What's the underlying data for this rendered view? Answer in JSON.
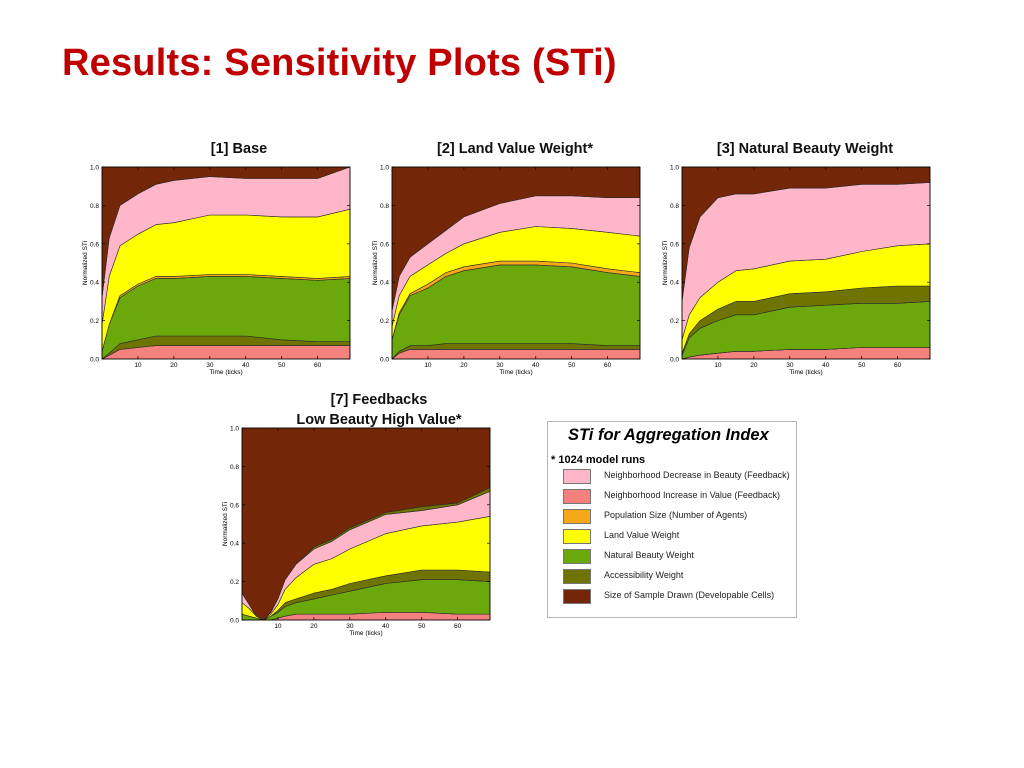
{
  "slide": {
    "title": "Results: Sensitivity Plots (STi)"
  },
  "legend": {
    "title": "STi for Aggregation Index",
    "note": "* 1024 model runs",
    "items": [
      {
        "label": "Neighborhood Decrease in Beauty (Feedback)",
        "color": "#ffb6c8"
      },
      {
        "label": "Neighborhood Increase in Value (Feedback)",
        "color": "#f4817e"
      },
      {
        "label": "Population Size (Number of Agents)",
        "color": "#f5a81a"
      },
      {
        "label": "Land Value Weight",
        "color": "#ffff00"
      },
      {
        "label": "Natural Beauty Weight",
        "color": "#6aa80c"
      },
      {
        "label": "Accessibility Weight",
        "color": "#6f7300"
      },
      {
        "label": "Size of Sample Drawn (Developable Cells)",
        "color": "#732608"
      }
    ]
  },
  "chart_data": [
    {
      "type": "area",
      "title": "[1] Base",
      "xlabel": "Time (ticks)",
      "ylabel": "Normalized STi",
      "xlim": [
        0,
        69
      ],
      "ylim": [
        0,
        1
      ],
      "xticks": [
        10,
        20,
        30,
        40,
        50,
        60
      ],
      "yticks": [
        "0.0",
        "0.2",
        "0.4",
        "0.6",
        "0.8",
        "1.0"
      ],
      "x": [
        0,
        2,
        5,
        10,
        15,
        20,
        30,
        40,
        50,
        60,
        69
      ],
      "series": [
        {
          "color": "#f4817e",
          "values": [
            0.0,
            0.02,
            0.05,
            0.06,
            0.07,
            0.07,
            0.07,
            0.07,
            0.07,
            0.07,
            0.07
          ]
        },
        {
          "color": "#6f7300",
          "values": [
            0.0,
            0.01,
            0.03,
            0.04,
            0.05,
            0.05,
            0.05,
            0.05,
            0.03,
            0.02,
            0.02
          ]
        },
        {
          "color": "#6aa80c",
          "values": [
            0.04,
            0.15,
            0.24,
            0.28,
            0.3,
            0.3,
            0.31,
            0.31,
            0.32,
            0.32,
            0.33
          ]
        },
        {
          "color": "#f5a81a",
          "values": [
            0.0,
            0.0,
            0.01,
            0.01,
            0.01,
            0.01,
            0.01,
            0.01,
            0.01,
            0.01,
            0.01
          ]
        },
        {
          "color": "#ffff00",
          "values": [
            0.14,
            0.25,
            0.26,
            0.26,
            0.27,
            0.28,
            0.31,
            0.31,
            0.31,
            0.32,
            0.35
          ]
        },
        {
          "color": "#ffb6c8",
          "values": [
            0.14,
            0.2,
            0.21,
            0.21,
            0.21,
            0.22,
            0.2,
            0.19,
            0.2,
            0.2,
            0.22
          ]
        },
        {
          "color": "#732608",
          "values": [
            0.68,
            0.37,
            0.24,
            0.14,
            0.09,
            0.07,
            0.05,
            0.06,
            0.06,
            0.06,
            0.0
          ]
        }
      ]
    },
    {
      "type": "area",
      "title": "[2] Land Value Weight*",
      "xlabel": "Time (ticks)",
      "ylabel": "Normalized STi",
      "xlim": [
        0,
        69
      ],
      "ylim": [
        0,
        1
      ],
      "xticks": [
        10,
        20,
        30,
        40,
        50,
        60
      ],
      "yticks": [
        "0.0",
        "0.2",
        "0.4",
        "0.6",
        "0.8",
        "1.0"
      ],
      "x": [
        0,
        2,
        5,
        10,
        15,
        20,
        30,
        40,
        50,
        60,
        69
      ],
      "series": [
        {
          "color": "#f4817e",
          "values": [
            0.0,
            0.03,
            0.05,
            0.05,
            0.05,
            0.05,
            0.05,
            0.05,
            0.05,
            0.05,
            0.05
          ]
        },
        {
          "color": "#6f7300",
          "values": [
            0.0,
            0.01,
            0.02,
            0.02,
            0.03,
            0.03,
            0.03,
            0.03,
            0.03,
            0.02,
            0.02
          ]
        },
        {
          "color": "#6aa80c",
          "values": [
            0.1,
            0.19,
            0.26,
            0.3,
            0.35,
            0.38,
            0.41,
            0.41,
            0.4,
            0.38,
            0.36
          ]
        },
        {
          "color": "#f5a81a",
          "values": [
            0.0,
            0.01,
            0.01,
            0.02,
            0.02,
            0.02,
            0.02,
            0.02,
            0.02,
            0.02,
            0.02
          ]
        },
        {
          "color": "#ffff00",
          "values": [
            0.07,
            0.09,
            0.09,
            0.1,
            0.1,
            0.12,
            0.15,
            0.18,
            0.18,
            0.19,
            0.19
          ]
        },
        {
          "color": "#ffb6c8",
          "values": [
            0.08,
            0.1,
            0.1,
            0.11,
            0.12,
            0.14,
            0.15,
            0.16,
            0.17,
            0.18,
            0.2
          ]
        },
        {
          "color": "#732608",
          "values": [
            0.75,
            0.57,
            0.47,
            0.4,
            0.33,
            0.26,
            0.19,
            0.15,
            0.15,
            0.16,
            0.16
          ]
        }
      ]
    },
    {
      "type": "area",
      "title": "[3] Natural Beauty Weight",
      "xlabel": "Time (ticks)",
      "ylabel": "Normalized STi",
      "xlim": [
        0,
        69
      ],
      "ylim": [
        0,
        1
      ],
      "xticks": [
        10,
        20,
        30,
        40,
        50,
        60
      ],
      "yticks": [
        "0.0",
        "0.2",
        "0.4",
        "0.6",
        "0.8",
        "1.0"
      ],
      "x": [
        0,
        2,
        5,
        10,
        15,
        20,
        30,
        40,
        50,
        60,
        69
      ],
      "series": [
        {
          "color": "#f4817e",
          "values": [
            0.0,
            0.01,
            0.02,
            0.03,
            0.04,
            0.04,
            0.05,
            0.05,
            0.06,
            0.06,
            0.06
          ]
        },
        {
          "color": "#6f7300",
          "values": [
            0.0,
            0.0,
            0.0,
            0.0,
            0.0,
            0.0,
            0.0,
            0.0,
            0.0,
            0.0,
            0.0
          ]
        },
        {
          "color": "#6aa80c",
          "values": [
            0.02,
            0.1,
            0.14,
            0.17,
            0.19,
            0.19,
            0.22,
            0.23,
            0.23,
            0.23,
            0.24
          ]
        },
        {
          "color": "#6f7300",
          "values": [
            0.01,
            0.02,
            0.04,
            0.06,
            0.07,
            0.07,
            0.07,
            0.07,
            0.08,
            0.09,
            0.08
          ]
        },
        {
          "color": "#ffff00",
          "values": [
            0.07,
            0.1,
            0.12,
            0.14,
            0.16,
            0.17,
            0.17,
            0.17,
            0.19,
            0.21,
            0.22
          ]
        },
        {
          "color": "#ffb6c8",
          "values": [
            0.2,
            0.35,
            0.42,
            0.44,
            0.4,
            0.39,
            0.38,
            0.37,
            0.35,
            0.32,
            0.32
          ]
        },
        {
          "color": "#732608",
          "values": [
            0.7,
            0.42,
            0.28,
            0.16,
            0.14,
            0.14,
            0.11,
            0.11,
            0.09,
            0.09,
            0.08
          ]
        }
      ]
    },
    {
      "type": "area",
      "title": "[7] Feedbacks\nLow Beauty High Value*",
      "xlabel": "Time (ticks)",
      "ylabel": "Normalized STi",
      "xlim": [
        0,
        69
      ],
      "ylim": [
        0,
        1
      ],
      "xticks": [
        10,
        20,
        30,
        40,
        50,
        60
      ],
      "yticks": [
        "0.0",
        "0.2",
        "0.4",
        "0.6",
        "0.8",
        "1.0"
      ],
      "x": [
        0,
        2,
        4,
        6,
        8,
        10,
        12,
        15,
        20,
        25,
        30,
        40,
        50,
        60,
        69
      ],
      "series": [
        {
          "color": "#f4817e",
          "values": [
            0.0,
            0.0,
            0.0,
            0.0,
            0.0,
            0.01,
            0.02,
            0.03,
            0.03,
            0.03,
            0.03,
            0.04,
            0.04,
            0.03,
            0.03
          ]
        },
        {
          "color": "#6aa80c",
          "values": [
            0.03,
            0.02,
            0.01,
            0.0,
            0.02,
            0.03,
            0.05,
            0.06,
            0.08,
            0.1,
            0.12,
            0.15,
            0.17,
            0.18,
            0.17
          ]
        },
        {
          "color": "#6f7300",
          "values": [
            0.0,
            0.0,
            0.0,
            0.0,
            0.0,
            0.01,
            0.02,
            0.02,
            0.03,
            0.03,
            0.04,
            0.04,
            0.05,
            0.05,
            0.05
          ]
        },
        {
          "color": "#ffff00",
          "values": [
            0.06,
            0.04,
            0.01,
            0.0,
            0.01,
            0.03,
            0.07,
            0.11,
            0.15,
            0.16,
            0.18,
            0.22,
            0.23,
            0.25,
            0.29
          ]
        },
        {
          "color": "#ffb6c8",
          "values": [
            0.05,
            0.02,
            0.0,
            0.0,
            0.01,
            0.03,
            0.05,
            0.07,
            0.08,
            0.09,
            0.1,
            0.1,
            0.08,
            0.09,
            0.13
          ]
        },
        {
          "color": "#6f7300",
          "values": [
            0.0,
            0.0,
            0.0,
            0.0,
            0.0,
            0.0,
            0.0,
            0.0,
            0.01,
            0.01,
            0.01,
            0.01,
            0.02,
            0.01,
            0.02
          ]
        },
        {
          "color": "#732608",
          "values": [
            0.86,
            0.92,
            0.98,
            1.0,
            0.96,
            0.89,
            0.79,
            0.71,
            0.62,
            0.58,
            0.52,
            0.44,
            0.41,
            0.39,
            0.31
          ]
        }
      ]
    }
  ]
}
